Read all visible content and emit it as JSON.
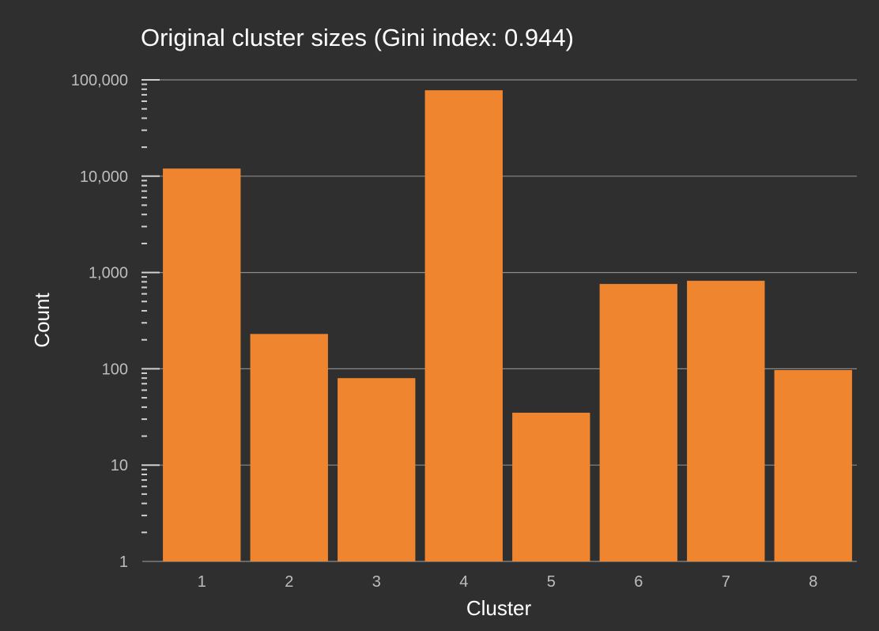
{
  "chart_data": {
    "type": "bar",
    "title": "Original cluster sizes (Gini index: 0.944)",
    "xlabel": "Cluster",
    "ylabel": "Count",
    "y_scale": "log",
    "ylim": [
      1,
      100000
    ],
    "y_ticks": [
      1,
      10,
      100,
      1000,
      10000,
      100000
    ],
    "y_tick_labels": [
      "1",
      "10",
      "100",
      "1,000",
      "10,000",
      "100,000"
    ],
    "categories": [
      "1",
      "2",
      "3",
      "4",
      "5",
      "6",
      "7",
      "8"
    ],
    "values": [
      12000,
      230,
      80,
      78000,
      35,
      760,
      820,
      97
    ],
    "grid": "horizontal",
    "bar_color": "#ef862f",
    "background_color": "#2f2f2f",
    "gridline_color": "#8a8a8a"
  }
}
